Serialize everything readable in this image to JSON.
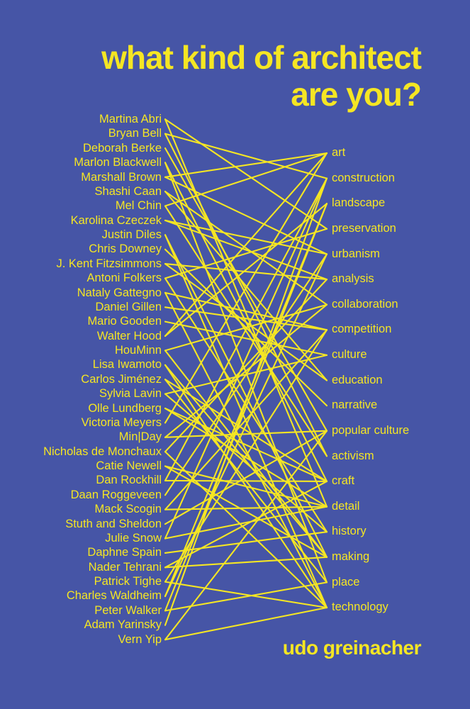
{
  "cover": {
    "title_line1": "what kind of architect",
    "title_line2": "are you?",
    "author": "udo greinacher",
    "background_color": "#4655a6",
    "accent_color": "#f5e623"
  },
  "architects": [
    "Martina Abri",
    "Bryan Bell",
    "Deborah Berke",
    "Marlon Blackwell",
    "Marshall Brown",
    "Shashi Caan",
    "Mel Chin",
    "Karolina Czeczek",
    "Justin Diles",
    "Chris Downey",
    "J. Kent Fitzsimmons",
    "Antoni Folkers",
    "Nataly Gattegno",
    "Daniel Gillen",
    "Mario Gooden",
    "Walter Hood",
    "HouMinn",
    "Lisa Iwamoto",
    "Carlos Jiménez",
    "Sylvia Lavin",
    "Olle Lundberg",
    "Victoria Meyers",
    "Min|Day",
    "Nicholas de Monchaux",
    "Catie Newell",
    "Dan Rockhill",
    "Daan Roggeveen",
    "Mack Scogin",
    "Stuth and Sheldon",
    "Julie Snow",
    "Daphne Spain",
    "Nader Tehrani",
    "Patrick Tighe",
    "Charles Waldheim",
    "Peter Walker",
    "Adam Yarinsky",
    "Vern Yip"
  ],
  "categories": [
    "art",
    "construction",
    "landscape",
    "preservation",
    "urbanism",
    "analysis",
    "collaboration",
    "competition",
    "culture",
    "education",
    "narrative",
    "popular culture",
    "activism",
    "craft",
    "detail",
    "history",
    "making",
    "place",
    "technology"
  ],
  "connections": [
    [
      0,
      3
    ],
    [
      0,
      14
    ],
    [
      1,
      12
    ],
    [
      1,
      1
    ],
    [
      2,
      11
    ],
    [
      3,
      13
    ],
    [
      3,
      17
    ],
    [
      4,
      4
    ],
    [
      4,
      0
    ],
    [
      5,
      6
    ],
    [
      5,
      9
    ],
    [
      6,
      0
    ],
    [
      6,
      12
    ],
    [
      7,
      4
    ],
    [
      7,
      5
    ],
    [
      8,
      18
    ],
    [
      8,
      16
    ],
    [
      9,
      10
    ],
    [
      10,
      5
    ],
    [
      10,
      9
    ],
    [
      11,
      15
    ],
    [
      11,
      3
    ],
    [
      12,
      18
    ],
    [
      12,
      7
    ],
    [
      13,
      7
    ],
    [
      14,
      8
    ],
    [
      15,
      2
    ],
    [
      15,
      0
    ],
    [
      16,
      16
    ],
    [
      16,
      6
    ],
    [
      17,
      16
    ],
    [
      17,
      18
    ],
    [
      18,
      17
    ],
    [
      18,
      13
    ],
    [
      19,
      8
    ],
    [
      19,
      15
    ],
    [
      20,
      13
    ],
    [
      20,
      14
    ],
    [
      21,
      0
    ],
    [
      22,
      6
    ],
    [
      22,
      11
    ],
    [
      23,
      5
    ],
    [
      23,
      18
    ],
    [
      24,
      16
    ],
    [
      24,
      14
    ],
    [
      25,
      1
    ],
    [
      25,
      13
    ],
    [
      26,
      4
    ],
    [
      27,
      7
    ],
    [
      27,
      14
    ],
    [
      28,
      11
    ],
    [
      29,
      14
    ],
    [
      29,
      1
    ],
    [
      30,
      15
    ],
    [
      31,
      16
    ],
    [
      31,
      13
    ],
    [
      32,
      18
    ],
    [
      32,
      7
    ],
    [
      33,
      2
    ],
    [
      33,
      4
    ],
    [
      34,
      2
    ],
    [
      34,
      17
    ],
    [
      35,
      1
    ],
    [
      36,
      11
    ],
    [
      36,
      18
    ]
  ]
}
